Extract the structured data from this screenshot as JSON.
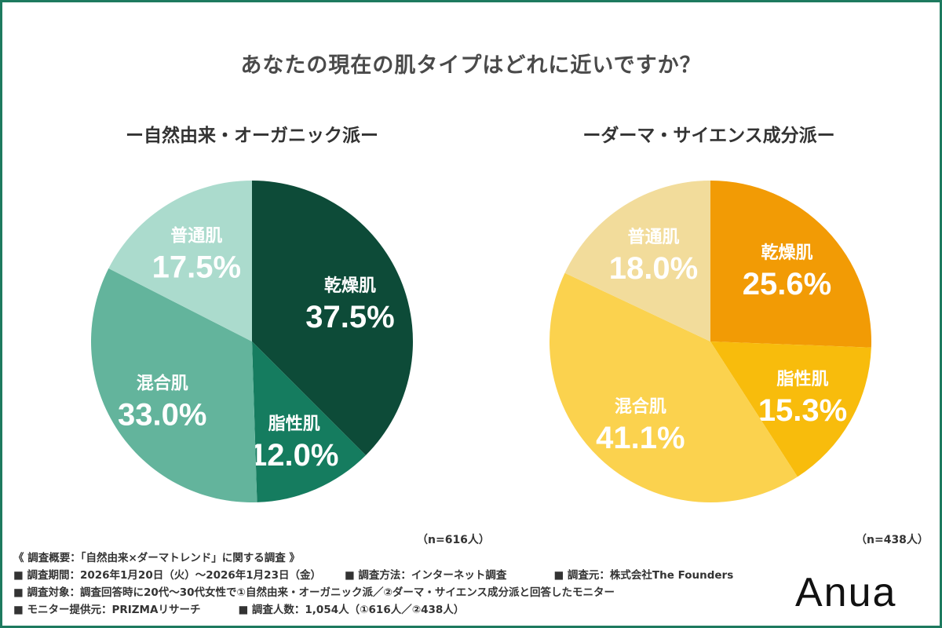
{
  "title": "あなたの現在の肌タイプはどれに近いですか？",
  "chart_data": [
    {
      "type": "pie",
      "title": "ー自然由来・オーガニック派ー",
      "sample": "（n=616人）",
      "slices": [
        {
          "label": "乾燥肌",
          "value": 37.5,
          "text": "37.5%",
          "color": "#0d4b38"
        },
        {
          "label": "脂性肌",
          "value": 12.0,
          "text": "12.0%",
          "color": "#157c5f"
        },
        {
          "label": "混合肌",
          "value": 33.0,
          "text": "33.0%",
          "color": "#63b49c"
        },
        {
          "label": "普通肌",
          "value": 17.5,
          "text": "17.5%",
          "color": "#abdbcd"
        }
      ]
    },
    {
      "type": "pie",
      "title": "ーダーマ・サイエンス成分派ー",
      "sample": "（n=438人）",
      "slices": [
        {
          "label": "乾燥肌",
          "value": 25.6,
          "text": "25.6%",
          "color": "#f29b05"
        },
        {
          "label": "脂性肌",
          "value": 15.3,
          "text": "15.3%",
          "color": "#f8bc0c"
        },
        {
          "label": "混合肌",
          "value": 41.1,
          "text": "41.1%",
          "color": "#fbd24e"
        },
        {
          "label": "普通肌",
          "value": 18.0,
          "text": "18.0%",
          "color": "#f2dc9b"
        }
      ]
    }
  ],
  "survey": {
    "heading": "《 調査概要：「自然由来×ダーマトレンド」に関する調査 》",
    "period": "■ 調査期間：2026年1月20日（火）〜2026年1月23日（金）",
    "method": "■ 調査方法：インターネット調査",
    "organizer": "■ 調査元：株式会社The Founders",
    "target": "■ 調査対象：調査回答時に20代〜30代女性で①自然由来・オーガニック派／②ダーマ・サイエンス成分派と回答したモニター",
    "provider": "■ モニター提供元：PRIZMAリサーチ",
    "respondents": "■ 調査人数：1,054人（①616人／②438人）"
  },
  "logo": "Anua"
}
